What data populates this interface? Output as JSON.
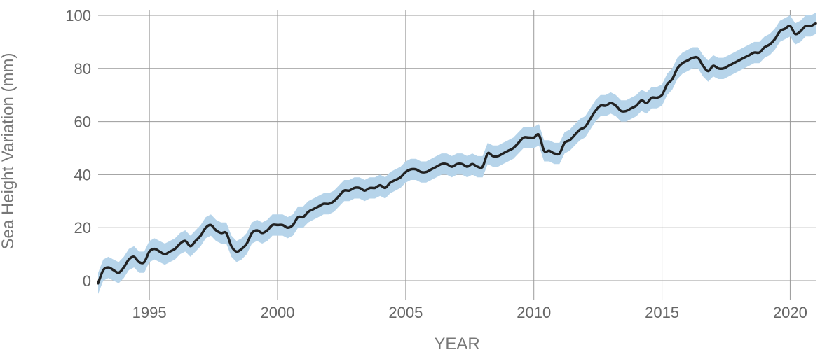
{
  "colors": {
    "line": "#222222",
    "band": "#b6d4ea",
    "grid": "#9a9a9a",
    "text": "#666666"
  },
  "chart_data": {
    "type": "line",
    "xlabel": "YEAR",
    "ylabel": "Sea Height Variation (mm)",
    "xlim": [
      1993.0,
      2021.0
    ],
    "ylim": [
      -5,
      100
    ],
    "grid": true,
    "x_ticks": [
      1995,
      2000,
      2005,
      2010,
      2015,
      2020
    ],
    "x_tick_labels": [
      "1995",
      "2000",
      "2005",
      "2010",
      "2015",
      "2020"
    ],
    "y_ticks": [
      0,
      20,
      40,
      60,
      80,
      100
    ],
    "y_tick_labels": [
      "0",
      "20",
      "40",
      "60",
      "80",
      "100"
    ],
    "uncertainty_band_mm": 4,
    "series": [
      {
        "x": [
          1993.0,
          1993.2,
          1993.4,
          1993.6,
          1993.8,
          1994.0,
          1994.2,
          1994.4,
          1994.6,
          1994.8,
          1995.0,
          1995.2,
          1995.4,
          1995.6,
          1995.8,
          1996.0,
          1996.2,
          1996.4,
          1996.6,
          1996.8,
          1997.0,
          1997.2,
          1997.4,
          1997.6,
          1997.8,
          1998.0,
          1998.2,
          1998.4,
          1998.6,
          1998.8,
          1999.0,
          1999.2,
          1999.4,
          1999.6,
          1999.8,
          2000.0,
          2000.2,
          2000.4,
          2000.6,
          2000.8,
          2001.0,
          2001.2,
          2001.4,
          2001.6,
          2001.8,
          2002.0,
          2002.2,
          2002.4,
          2002.6,
          2002.8,
          2003.0,
          2003.2,
          2003.4,
          2003.6,
          2003.8,
          2004.0,
          2004.2,
          2004.4,
          2004.6,
          2004.8,
          2005.0,
          2005.2,
          2005.4,
          2005.6,
          2005.8,
          2006.0,
          2006.2,
          2006.4,
          2006.6,
          2006.8,
          2007.0,
          2007.2,
          2007.4,
          2007.6,
          2007.8,
          2008.0,
          2008.2,
          2008.4,
          2008.6,
          2008.8,
          2009.0,
          2009.2,
          2009.4,
          2009.6,
          2009.8,
          2010.0,
          2010.2,
          2010.4,
          2010.6,
          2010.8,
          2011.0,
          2011.2,
          2011.4,
          2011.6,
          2011.8,
          2012.0,
          2012.2,
          2012.4,
          2012.6,
          2012.8,
          2013.0,
          2013.2,
          2013.4,
          2013.6,
          2013.8,
          2014.0,
          2014.2,
          2014.4,
          2014.6,
          2014.8,
          2015.0,
          2015.2,
          2015.4,
          2015.6,
          2015.8,
          2016.0,
          2016.2,
          2016.4,
          2016.6,
          2016.8,
          2017.0,
          2017.2,
          2017.4,
          2017.6,
          2017.8,
          2018.0,
          2018.2,
          2018.4,
          2018.6,
          2018.8,
          2019.0,
          2019.2,
          2019.4,
          2019.6,
          2019.8,
          2020.0,
          2020.2,
          2020.4,
          2020.6,
          2020.8,
          2021.0
        ],
        "values": [
          -1,
          4,
          5,
          4,
          3,
          5,
          8,
          9,
          7,
          7,
          11,
          12,
          11,
          10,
          11,
          12,
          14,
          15,
          13,
          15,
          17,
          20,
          21,
          19,
          18,
          18,
          13,
          11,
          12,
          14,
          18,
          19,
          18,
          19,
          21,
          21,
          21,
          20,
          21,
          24,
          24,
          26,
          27,
          28,
          29,
          29,
          30,
          32,
          34,
          34,
          35,
          35,
          34,
          35,
          35,
          36,
          35,
          37,
          38,
          39,
          41,
          42,
          42,
          41,
          41,
          42,
          43,
          44,
          44,
          43,
          44,
          44,
          43,
          44,
          43,
          43,
          48,
          47,
          47,
          48,
          49,
          50,
          52,
          54,
          54,
          54,
          55,
          49,
          49,
          48,
          48,
          52,
          53,
          55,
          57,
          58,
          61,
          64,
          66,
          66,
          67,
          66,
          64,
          64,
          65,
          66,
          68,
          67,
          69,
          69,
          70,
          74,
          76,
          80,
          82,
          83,
          84,
          84,
          81,
          79,
          81,
          80,
          80,
          81,
          82,
          83,
          84,
          85,
          86,
          86,
          88,
          89,
          91,
          94,
          95,
          96,
          93,
          94,
          96,
          96,
          97
        ]
      }
    ]
  }
}
